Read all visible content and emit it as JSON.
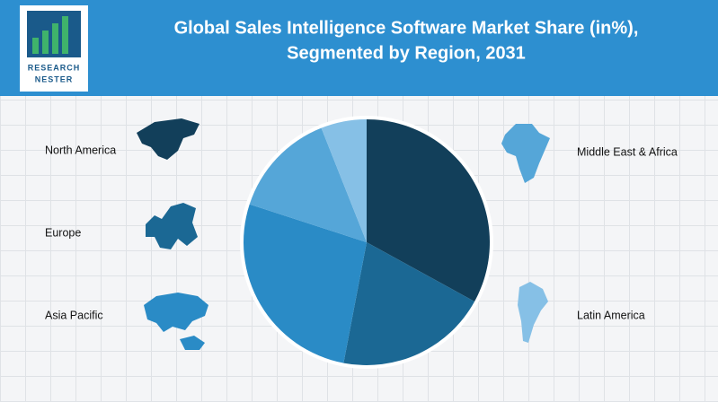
{
  "logo": {
    "line1": "RESEARCH",
    "line2": "NESTER"
  },
  "chart_data": {
    "type": "pie",
    "title": [
      "Global Sales Intelligence Software Market Share (in%),",
      "Segmented by Region, 2031"
    ],
    "categories": [
      "North America",
      "Europe",
      "Asia Pacific",
      "Middle East & Africa",
      "Latin America"
    ],
    "values": [
      33,
      20,
      27,
      14,
      6
    ],
    "colors": [
      "#123f5a",
      "#1b6894",
      "#2a8bc6",
      "#55a6d8",
      "#86c0e6"
    ]
  }
}
